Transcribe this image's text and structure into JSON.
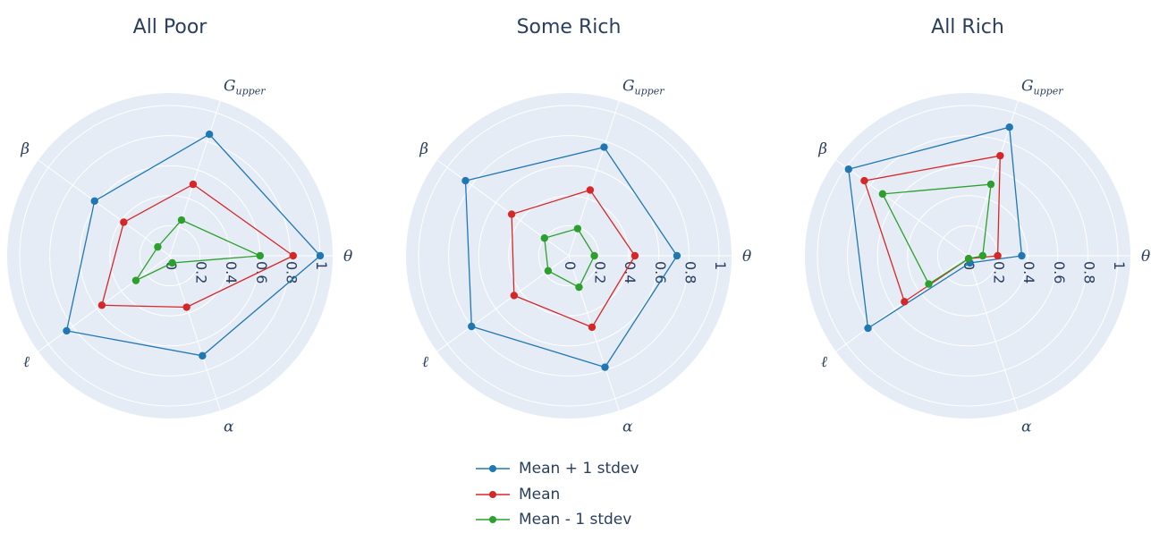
{
  "axes": [
    {
      "key": "theta",
      "symbol": "θ",
      "sub": ""
    },
    {
      "key": "g_upper",
      "symbol": "G",
      "sub": "upper"
    },
    {
      "key": "beta",
      "symbol": "β",
      "sub": ""
    },
    {
      "key": "ell",
      "symbol": "ℓ",
      "sub": ""
    },
    {
      "key": "alpha",
      "symbol": "α",
      "sub": ""
    }
  ],
  "chart_data": [
    {
      "type": "radar",
      "title": "All Poor",
      "radial_range": [
        0,
        1
      ],
      "radial_ticks": [
        "0",
        "0.2",
        "0.4",
        "0.6",
        "0.8",
        "1"
      ],
      "series": [
        {
          "name": "Mean + 1 stdev",
          "values": [
            1.0,
            0.85,
            0.62,
            0.85,
            0.7
          ]
        },
        {
          "name": "Mean",
          "values": [
            0.82,
            0.5,
            0.38,
            0.56,
            0.36
          ]
        },
        {
          "name": "Mean - 1 stdev",
          "values": [
            0.6,
            0.25,
            0.1,
            0.28,
            0.05
          ]
        }
      ]
    },
    {
      "type": "radar",
      "title": "Some Rich",
      "radial_range": [
        0,
        1
      ],
      "radial_ticks": [
        "0",
        "0.2",
        "0.4",
        "0.6",
        "0.8",
        "1"
      ],
      "series": [
        {
          "name": "Mean + 1 stdev",
          "values": [
            0.72,
            0.76,
            0.85,
            0.8,
            0.78
          ]
        },
        {
          "name": "Mean",
          "values": [
            0.44,
            0.46,
            0.47,
            0.45,
            0.5
          ]
        },
        {
          "name": "Mean - 1 stdev",
          "values": [
            0.17,
            0.19,
            0.2,
            0.17,
            0.22
          ]
        }
      ]
    },
    {
      "type": "radar",
      "title": "All Rich",
      "radial_range": [
        0,
        1
      ],
      "radial_ticks": [
        "0",
        "0.2",
        "0.4",
        "0.6",
        "0.8",
        "1"
      ],
      "series": [
        {
          "name": "Mean + 1 stdev",
          "values": [
            0.36,
            0.9,
            0.98,
            0.82,
            0.05
          ]
        },
        {
          "name": "Mean",
          "values": [
            0.2,
            0.7,
            0.85,
            0.52,
            0.02
          ]
        },
        {
          "name": "Mean - 1 stdev",
          "values": [
            0.1,
            0.5,
            0.7,
            0.32,
            0.02
          ]
        }
      ]
    }
  ],
  "colors": {
    "polar_bg": "#e5ecf6",
    "grid": "#ffffff",
    "series": [
      "#1f77b4",
      "#d62728",
      "#2ca02c"
    ]
  },
  "legend": {
    "items": [
      {
        "label": "Mean + 1 stdev"
      },
      {
        "label": "Mean"
      },
      {
        "label": "Mean - 1 stdev"
      }
    ]
  }
}
